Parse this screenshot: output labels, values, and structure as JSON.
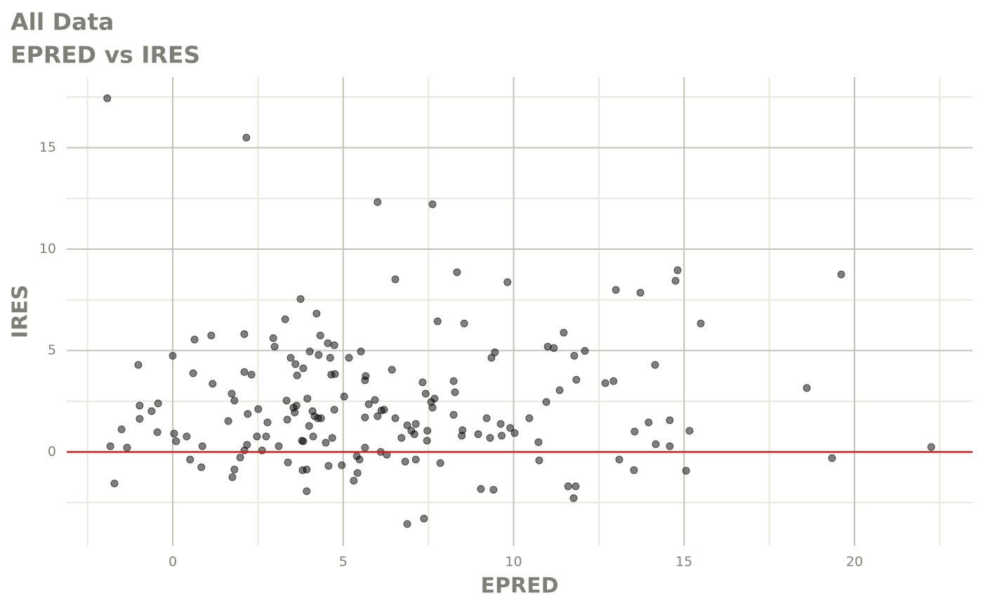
{
  "chart_data": {
    "type": "scatter",
    "title": "All Data",
    "subtitle": "EPRED vs IRES",
    "x_label": "EPRED",
    "y_label": "IRES",
    "xlim": [
      -3.11,
      23.46
    ],
    "ylim": [
      -4.64,
      18.48
    ],
    "xticks": [
      0,
      5,
      10,
      15,
      20
    ],
    "yticks": [
      0,
      5,
      10,
      15
    ],
    "grid": true,
    "color": "#000000",
    "hline": {
      "value": 0,
      "color": "#d7191c"
    },
    "x": [
      -1.92,
      2.16,
      6.01,
      7.62,
      8.34,
      6.53,
      9.82,
      14.81,
      14.75,
      19.61,
      13.0,
      13.72,
      3.75,
      4.22,
      3.3,
      7.77,
      8.55,
      15.49,
      11.47,
      2.1,
      1.13,
      4.33,
      0.64,
      2.95,
      4.55,
      4.74,
      2.99,
      11.0,
      11.18,
      12.09,
      4.02,
      5.52,
      9.45,
      11.78,
      0.0,
      9.35,
      3.46,
      4.62,
      5.17,
      4.28,
      -1.01,
      3.6,
      3.83,
      14.15,
      6.43,
      2.1,
      0.6,
      2.31,
      4.65,
      4.76,
      3.65,
      5.66,
      11.84,
      12.93,
      12.69,
      5.64,
      8.24,
      7.33,
      1.17,
      11.35,
      18.6,
      8.28,
      1.73,
      7.42,
      5.03,
      1.81,
      3.34,
      5.93,
      7.68,
      3.95,
      10.96,
      7.58,
      -0.43,
      5.75,
      -0.97,
      3.63,
      3.54,
      7.62,
      2.51,
      6.2,
      4.1,
      -0.62,
      4.74,
      6.12,
      3.58,
      2.2,
      8.24,
      4.16,
      6.01,
      5.64,
      4.26,
      4.35,
      9.21,
      10.46,
      -0.97,
      6.53,
      3.36,
      14.58,
      1.63,
      2.78,
      13.96,
      9.62,
      7.13,
      6.88,
      4.0,
      -1.5,
      9.9,
      8.5,
      7.47,
      15.16,
      7.0,
      13.55,
      -0.45,
      10.03,
      0.04,
      8.96,
      7.09,
      8.48,
      9.65,
      0.41,
      4.12,
      2.47,
      2.74,
      9.31,
      4.68,
      6.71,
      7.46,
      0.1,
      3.79,
      3.83,
      10.73,
      4.49,
      2.18,
      14.17,
      0.87,
      3.11,
      -1.83,
      14.58,
      22.25,
      -1.34,
      5.64,
      2.1,
      2.62,
      6.1,
      6.28,
      5.4,
      1.98,
      5.48,
      0.51,
      7.13,
      13.1,
      19.34,
      10.75,
      6.82,
      3.38,
      7.85,
      4.96,
      4.57,
      0.84,
      1.81,
      3.93,
      3.81,
      15.06,
      13.53,
      5.42,
      1.75,
      -1.71,
      5.31,
      11.6,
      11.82,
      9.04,
      9.41,
      3.93,
      11.76,
      7.37,
      6.88
    ],
    "values": [
      17.44,
      15.5,
      12.32,
      12.21,
      8.86,
      8.51,
      8.37,
      8.96,
      8.44,
      8.75,
      7.99,
      7.85,
      7.54,
      6.82,
      6.54,
      6.44,
      6.33,
      6.33,
      5.88,
      5.81,
      5.74,
      5.74,
      5.54,
      5.61,
      5.36,
      5.26,
      5.19,
      5.19,
      5.12,
      4.98,
      4.95,
      4.95,
      4.91,
      4.74,
      4.74,
      4.64,
      4.64,
      4.64,
      4.64,
      4.78,
      4.29,
      4.33,
      4.12,
      4.29,
      4.05,
      3.94,
      3.88,
      3.81,
      3.81,
      3.84,
      3.77,
      3.74,
      3.56,
      3.49,
      3.39,
      3.53,
      3.49,
      3.43,
      3.36,
      3.04,
      3.15,
      2.94,
      2.87,
      2.87,
      2.73,
      2.53,
      2.53,
      2.56,
      2.63,
      2.63,
      2.46,
      2.46,
      2.39,
      2.35,
      2.28,
      2.28,
      2.18,
      2.18,
      2.11,
      2.08,
      2.01,
      2.01,
      2.08,
      2.04,
      1.94,
      1.87,
      1.83,
      1.76,
      1.76,
      1.7,
      1.66,
      1.66,
      1.66,
      1.66,
      1.63,
      1.66,
      1.59,
      1.56,
      1.52,
      1.45,
      1.45,
      1.38,
      1.38,
      1.31,
      1.28,
      1.11,
      1.18,
      1.07,
      1.04,
      1.04,
      1.04,
      1.0,
      0.97,
      0.93,
      0.9,
      0.87,
      0.87,
      0.8,
      0.8,
      0.76,
      0.76,
      0.76,
      0.76,
      0.69,
      0.69,
      0.69,
      0.55,
      0.52,
      0.55,
      0.52,
      0.48,
      0.45,
      0.35,
      0.38,
      0.28,
      0.28,
      0.28,
      0.28,
      0.24,
      0.21,
      0.21,
      0.07,
      0.07,
      0.0,
      -0.14,
      -0.21,
      -0.28,
      -0.38,
      -0.38,
      -0.38,
      -0.38,
      -0.31,
      -0.42,
      -0.48,
      -0.52,
      -0.55,
      -0.66,
      -0.69,
      -0.76,
      -0.87,
      -0.87,
      -0.9,
      -0.93,
      -0.9,
      -1.04,
      -1.25,
      -1.56,
      -1.42,
      -1.7,
      -1.7,
      -1.83,
      -1.87,
      -1.94,
      -2.28,
      -3.29,
      -3.56
    ]
  }
}
